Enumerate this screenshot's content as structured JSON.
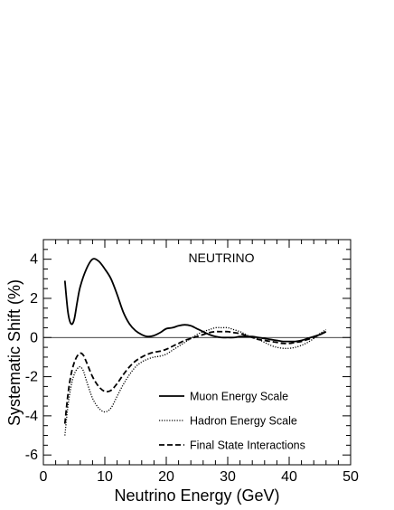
{
  "chart_data": {
    "type": "line",
    "title": "",
    "annotation": "NEUTRINO",
    "xlabel": "Neutrino Energy (GeV)",
    "ylabel": "Systematic Shift (%)",
    "xlim": [
      0,
      50
    ],
    "ylim": [
      -6.5,
      5
    ],
    "xticks": [
      0,
      10,
      20,
      30,
      40,
      50
    ],
    "yticks": [
      -6,
      -4,
      -2,
      0,
      2,
      4
    ],
    "grid": false,
    "legend_position": "bottom-right",
    "zero_line": true,
    "series": [
      {
        "name": "Muon Energy Scale",
        "style": "solid",
        "color": "#000000",
        "x": [
          3.5,
          4.0,
          4.5,
          5.0,
          5.5,
          6.0,
          7.0,
          8.0,
          9.0,
          10.0,
          11.0,
          12.0,
          13.0,
          14.0,
          15.0,
          16.0,
          17.0,
          18.0,
          19.0,
          20.0,
          21.0,
          22.0,
          23.0,
          24.0,
          25.0,
          26.0,
          27.0,
          28.0,
          29.0,
          30.0,
          31.0,
          32.0,
          33.0,
          34.0,
          35.0,
          36.0,
          37.0,
          38.0,
          39.0,
          40.0,
          41.0,
          42.0,
          43.0,
          44.0,
          45.0,
          46.0
        ],
        "y": [
          2.9,
          1.3,
          0.7,
          0.9,
          1.8,
          2.6,
          3.5,
          4.0,
          3.9,
          3.5,
          3.0,
          2.2,
          1.3,
          0.7,
          0.35,
          0.15,
          0.05,
          0.1,
          0.25,
          0.45,
          0.5,
          0.6,
          0.65,
          0.6,
          0.45,
          0.3,
          0.15,
          0.05,
          0.0,
          0.0,
          0.0,
          0.05,
          0.05,
          0.05,
          0.0,
          -0.05,
          -0.1,
          -0.15,
          -0.2,
          -0.2,
          -0.2,
          -0.15,
          -0.05,
          0.05,
          0.15,
          0.3
        ]
      },
      {
        "name": "Hadron Energy Scale",
        "style": "dotted",
        "color": "#000000",
        "x": [
          3.5,
          4.0,
          4.5,
          5.0,
          5.5,
          6.0,
          6.5,
          7.0,
          8.0,
          9.0,
          10.0,
          11.0,
          12.0,
          13.0,
          14.0,
          15.0,
          16.0,
          17.0,
          18.0,
          19.0,
          20.0,
          21.0,
          22.0,
          23.0,
          24.0,
          25.0,
          26.0,
          27.0,
          28.0,
          29.0,
          30.0,
          31.0,
          32.0,
          33.0,
          34.0,
          35.0,
          36.0,
          37.0,
          38.0,
          39.0,
          40.0,
          41.0,
          42.0,
          43.0,
          44.0,
          45.0,
          46.0
        ],
        "y": [
          -5.0,
          -3.5,
          -2.5,
          -1.9,
          -1.6,
          -1.5,
          -1.7,
          -2.2,
          -3.1,
          -3.6,
          -3.8,
          -3.6,
          -3.0,
          -2.4,
          -1.9,
          -1.5,
          -1.25,
          -1.1,
          -1.0,
          -0.95,
          -0.85,
          -0.65,
          -0.45,
          -0.25,
          -0.05,
          0.15,
          0.3,
          0.4,
          0.5,
          0.5,
          0.5,
          0.4,
          0.3,
          0.15,
          0.0,
          -0.1,
          -0.25,
          -0.4,
          -0.5,
          -0.55,
          -0.55,
          -0.5,
          -0.4,
          -0.25,
          -0.05,
          0.2,
          0.4
        ]
      },
      {
        "name": "Final State Interactions",
        "style": "dashed",
        "color": "#000000",
        "x": [
          3.5,
          4.0,
          4.5,
          5.0,
          5.5,
          6.0,
          6.5,
          7.0,
          8.0,
          9.0,
          10.0,
          11.0,
          12.0,
          13.0,
          14.0,
          15.0,
          16.0,
          17.0,
          18.0,
          19.0,
          20.0,
          21.0,
          22.0,
          23.0,
          24.0,
          25.0,
          26.0,
          27.0,
          28.0,
          29.0,
          30.0,
          31.0,
          32.0,
          33.0,
          34.0,
          35.0,
          36.0,
          37.0,
          38.0,
          39.0,
          40.0,
          41.0,
          42.0,
          43.0,
          44.0,
          45.0,
          46.0
        ],
        "y": [
          -4.4,
          -2.9,
          -1.9,
          -1.3,
          -0.95,
          -0.8,
          -0.9,
          -1.25,
          -2.0,
          -2.5,
          -2.75,
          -2.7,
          -2.35,
          -1.9,
          -1.5,
          -1.2,
          -1.0,
          -0.85,
          -0.75,
          -0.7,
          -0.6,
          -0.45,
          -0.3,
          -0.15,
          -0.05,
          0.05,
          0.15,
          0.25,
          0.3,
          0.3,
          0.3,
          0.25,
          0.2,
          0.1,
          0.0,
          -0.1,
          -0.15,
          -0.2,
          -0.25,
          -0.3,
          -0.3,
          -0.25,
          -0.2,
          -0.1,
          0.0,
          0.15,
          0.3
        ]
      }
    ]
  }
}
